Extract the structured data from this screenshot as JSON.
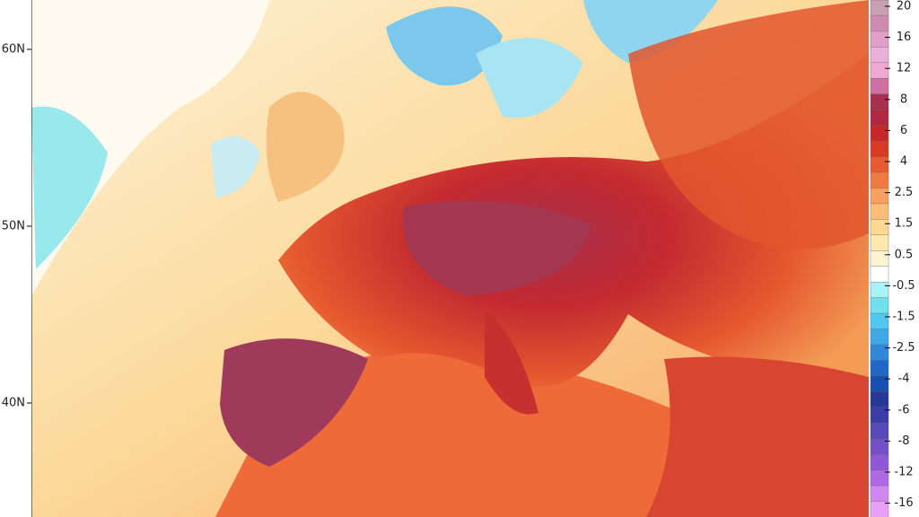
{
  "map": {
    "latitude_labels": [
      "60N",
      "50N",
      "40N"
    ],
    "legend": [
      20,
      16,
      12,
      8,
      6,
      4,
      2.5,
      1.5,
      0.5,
      -0.5,
      -1.5,
      -2.5,
      -4,
      -6,
      -8,
      -12,
      -16
    ]
  }
}
